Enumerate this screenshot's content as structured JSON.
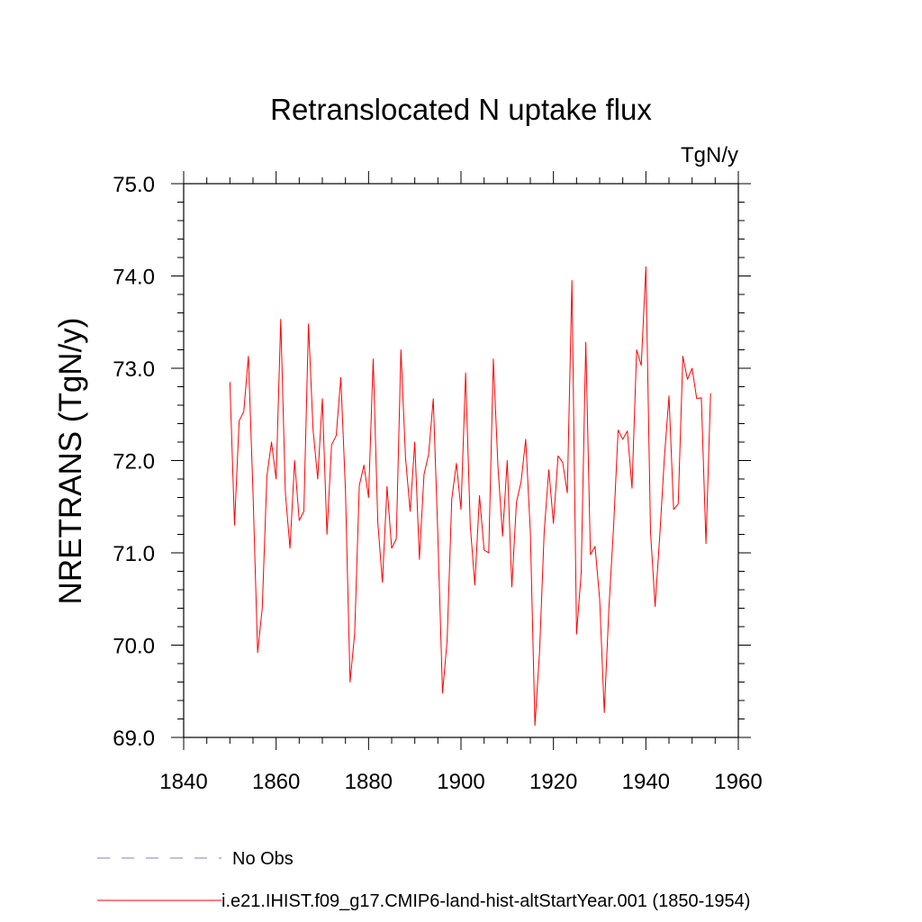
{
  "chart_data": {
    "type": "line",
    "title": "Retranslocated N uptake flux",
    "units": "TgN/y",
    "ylabel": "NRETRANS  (TgN/y)",
    "xlabel": "",
    "xlim": [
      1840,
      1960
    ],
    "ylim": [
      69.0,
      75.0
    ],
    "xticks": [
      1840,
      1860,
      1880,
      1900,
      1920,
      1940,
      1960
    ],
    "xtick_labels": [
      "1840",
      "1860",
      "1880",
      "1900",
      "1920",
      "1940",
      "1960"
    ],
    "yticks": [
      69,
      70,
      71,
      72,
      73,
      74,
      75
    ],
    "ytick_labels": [
      "69.0",
      "70.0",
      "71.0",
      "72.0",
      "73.0",
      "74.0",
      "75.0"
    ],
    "grid": false,
    "legend_position": "bottom-left",
    "series": [
      {
        "name": "No Obs",
        "color": "#7f7fbf",
        "style": "dashed",
        "x": [],
        "values": []
      },
      {
        "name": "i.e21.IHIST.f09_g17.CMIP6-land-hist-altStartYear.001 (1850-1954)",
        "color": "#ff0000",
        "style": "solid",
        "x": [
          1850,
          1851,
          1852,
          1853,
          1854,
          1855,
          1856,
          1857,
          1858,
          1859,
          1860,
          1861,
          1862,
          1863,
          1864,
          1865,
          1866,
          1867,
          1868,
          1869,
          1870,
          1871,
          1872,
          1873,
          1874,
          1875,
          1876,
          1877,
          1878,
          1879,
          1880,
          1881,
          1882,
          1883,
          1884,
          1885,
          1886,
          1887,
          1888,
          1889,
          1890,
          1891,
          1892,
          1893,
          1894,
          1895,
          1896,
          1897,
          1898,
          1899,
          1900,
          1901,
          1902,
          1903,
          1904,
          1905,
          1906,
          1907,
          1908,
          1909,
          1910,
          1911,
          1912,
          1913,
          1914,
          1915,
          1916,
          1917,
          1918,
          1919,
          1920,
          1921,
          1922,
          1923,
          1924,
          1925,
          1926,
          1927,
          1928,
          1929,
          1930,
          1931,
          1932,
          1933,
          1934,
          1935,
          1936,
          1937,
          1938,
          1939,
          1940,
          1941,
          1942,
          1943,
          1944,
          1945,
          1946,
          1947,
          1948,
          1949,
          1950,
          1951,
          1952,
          1953,
          1954
        ],
        "values": [
          72.85,
          71.3,
          72.43,
          72.53,
          73.13,
          71.65,
          69.92,
          70.4,
          71.83,
          72.2,
          71.8,
          73.53,
          71.65,
          71.05,
          72.0,
          71.35,
          71.45,
          73.48,
          72.33,
          71.8,
          72.67,
          71.2,
          72.17,
          72.27,
          72.9,
          71.68,
          69.6,
          70.13,
          71.73,
          71.95,
          71.6,
          73.1,
          71.33,
          70.68,
          71.72,
          71.05,
          71.15,
          73.2,
          72.03,
          71.45,
          72.2,
          70.93,
          71.85,
          72.07,
          72.67,
          71.18,
          69.48,
          70.05,
          71.58,
          71.97,
          71.47,
          72.95,
          71.3,
          70.65,
          71.62,
          71.03,
          71.0,
          73.1,
          71.93,
          71.18,
          72.0,
          70.63,
          71.55,
          71.77,
          72.23,
          71.23,
          69.13,
          69.93,
          71.23,
          71.9,
          71.32,
          72.05,
          71.98,
          71.65,
          73.95,
          70.12,
          70.78,
          73.28,
          70.98,
          71.07,
          70.5,
          69.27,
          70.4,
          71.27,
          72.33,
          72.23,
          72.32,
          71.7,
          73.2,
          73.03,
          74.1,
          71.23,
          70.42,
          71.18,
          72.03,
          72.7,
          71.47,
          71.53,
          73.13,
          72.88,
          73.0,
          72.67,
          72.68,
          71.1,
          72.73
        ]
      }
    ]
  }
}
